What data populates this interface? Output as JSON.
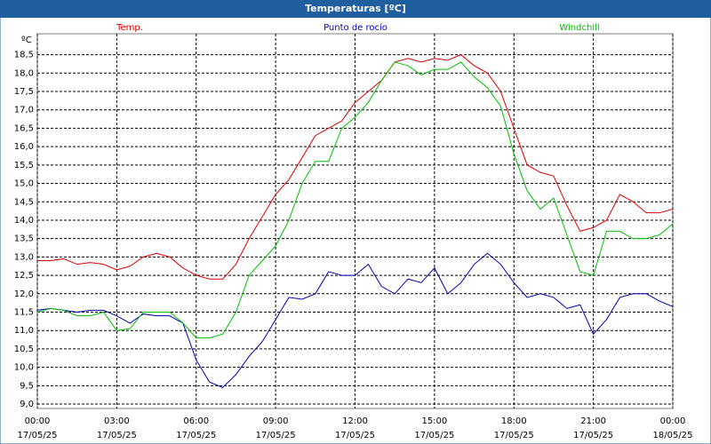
{
  "chart_data": {
    "type": "line",
    "title": "Temperaturas [ºC]",
    "y_label": "ºC",
    "x": [
      0,
      0.5,
      1,
      1.5,
      2,
      2.5,
      3,
      3.5,
      4,
      4.5,
      5,
      5.5,
      6,
      6.5,
      7,
      7.5,
      8,
      8.5,
      9,
      9.5,
      10,
      10.5,
      11,
      11.5,
      12,
      12.5,
      13,
      13.5,
      14,
      14.5,
      15,
      15.5,
      16,
      16.5,
      17,
      17.5,
      18,
      18.5,
      19,
      19.5,
      20,
      20.5,
      21,
      21.5,
      22,
      22.5,
      23,
      23.5,
      24
    ],
    "series": [
      {
        "name": "Temp.",
        "color": "#e00000",
        "values": [
          12.9,
          12.9,
          12.95,
          12.8,
          12.85,
          12.8,
          12.65,
          12.75,
          13.0,
          13.1,
          13.0,
          12.7,
          12.5,
          12.4,
          12.4,
          12.8,
          13.5,
          14.1,
          14.7,
          15.1,
          15.7,
          16.3,
          16.5,
          16.7,
          17.2,
          17.5,
          17.8,
          18.3,
          18.4,
          18.3,
          18.4,
          18.35,
          18.5,
          18.2,
          18.0,
          17.5,
          16.5,
          15.5,
          15.3,
          15.2,
          14.4,
          13.7,
          13.8,
          14.0,
          14.7,
          14.5,
          14.2,
          14.2,
          14.3
        ]
      },
      {
        "name": "Punto de rocío",
        "color": "#0000b0",
        "values": [
          11.55,
          11.6,
          11.55,
          11.5,
          11.55,
          11.55,
          11.4,
          11.2,
          11.45,
          11.4,
          11.4,
          11.2,
          10.2,
          9.6,
          9.45,
          9.8,
          10.3,
          10.7,
          11.3,
          11.9,
          11.85,
          12.0,
          12.6,
          12.5,
          12.5,
          12.8,
          12.2,
          12.0,
          12.4,
          12.3,
          12.7,
          12.0,
          12.3,
          12.8,
          13.1,
          12.8,
          12.3,
          11.9,
          12.0,
          11.9,
          11.6,
          11.7,
          10.9,
          11.3,
          11.9,
          12.0,
          12.0,
          11.8,
          11.65
        ]
      },
      {
        "name": "Windchill",
        "color": "#00c000",
        "values": [
          11.5,
          11.6,
          11.55,
          11.4,
          11.4,
          11.5,
          11.0,
          11.05,
          11.5,
          11.5,
          11.5,
          11.2,
          10.8,
          10.8,
          10.9,
          11.5,
          12.5,
          12.9,
          13.3,
          14.0,
          15.0,
          15.6,
          15.6,
          16.5,
          16.8,
          17.2,
          17.8,
          18.3,
          18.2,
          17.95,
          18.1,
          18.1,
          18.3,
          17.9,
          17.6,
          17.1,
          15.8,
          14.8,
          14.3,
          14.6,
          13.6,
          12.6,
          12.5,
          13.7,
          13.7,
          13.5,
          13.5,
          13.6,
          13.9
        ]
      }
    ],
    "xlim": [
      0,
      24
    ],
    "xticks": [
      {
        "value": 0,
        "label": "00:00",
        "date": "17/05/25"
      },
      {
        "value": 3,
        "label": "03:00",
        "date": "17/05/25"
      },
      {
        "value": 6,
        "label": "06:00",
        "date": "17/05/25"
      },
      {
        "value": 9,
        "label": "09:00",
        "date": "17/05/25"
      },
      {
        "value": 12,
        "label": "12:00",
        "date": "17/05/25"
      },
      {
        "value": 15,
        "label": "15:00",
        "date": "17/05/25"
      },
      {
        "value": 18,
        "label": "18:00",
        "date": "17/05/25"
      },
      {
        "value": 21,
        "label": "21:00",
        "date": "17/05/25"
      },
      {
        "value": 24,
        "label": "00:00",
        "date": "18/05/25"
      }
    ],
    "ylim": [
      8.88,
      19.07
    ],
    "yticks": [
      {
        "value": 9,
        "label": "9,0"
      },
      {
        "value": 9.5,
        "label": "9,5"
      },
      {
        "value": 10,
        "label": "10,0"
      },
      {
        "value": 10.5,
        "label": "10,5"
      },
      {
        "value": 11,
        "label": "11,0"
      },
      {
        "value": 11.5,
        "label": "11,5"
      },
      {
        "value": 12,
        "label": "12,0"
      },
      {
        "value": 12.5,
        "label": "12,5"
      },
      {
        "value": 13,
        "label": "13,0"
      },
      {
        "value": 13.5,
        "label": "13,5"
      },
      {
        "value": 14,
        "label": "14,0"
      },
      {
        "value": 14.5,
        "label": "14,5"
      },
      {
        "value": 15,
        "label": "15,0"
      },
      {
        "value": 15.5,
        "label": "15,5"
      },
      {
        "value": 16,
        "label": "16,0"
      },
      {
        "value": 16.5,
        "label": "16,5"
      },
      {
        "value": 17,
        "label": "17,0"
      },
      {
        "value": 17.5,
        "label": "17,5"
      },
      {
        "value": 18,
        "label": "18,0"
      },
      {
        "value": 18.5,
        "label": "18,5"
      }
    ],
    "grid": true
  }
}
